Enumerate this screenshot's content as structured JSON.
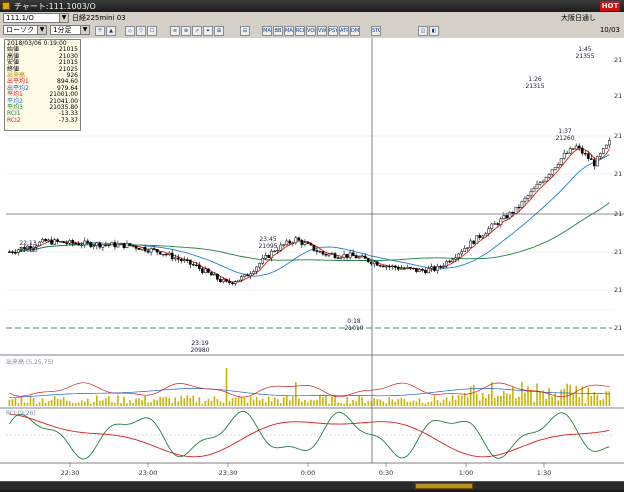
{
  "window": {
    "title": "チャート:111.1003/O",
    "hot_badge": "HOT"
  },
  "toolbar": {
    "symbol_code": "111.1/O",
    "symbol_name": "日経225mini 03",
    "chart_type": "ローソク",
    "interval": "1分足",
    "exchange_label": "大阪日通し",
    "date_label": "10/03",
    "buttons": [
      "〒",
      "▲",
      "◇",
      "▽",
      "☐",
      "≡",
      "⊕",
      "↗",
      "✦",
      "⊞",
      "⊟",
      "MA",
      "BB",
      "MACD",
      "RCI",
      "VOL",
      "VWAP",
      "PSY",
      "ATR",
      "DMI",
      "STC",
      "◫",
      "◧"
    ]
  },
  "info_panel": {
    "datetime": "2018/03/06 0:19:00",
    "rows": [
      {
        "label": "始値",
        "value": "21015",
        "color": "#000000"
      },
      {
        "label": "高値",
        "value": "21030",
        "color": "#000000"
      },
      {
        "label": "安値",
        "value": "21015",
        "color": "#000000"
      },
      {
        "label": "終値",
        "value": "21025",
        "color": "#000000"
      },
      {
        "label": "出来高",
        "value": "926",
        "color": "#b8860b"
      },
      {
        "label": "出平均1",
        "value": "894.60",
        "color": "#d42020"
      },
      {
        "label": "出平均2",
        "value": "979.64",
        "color": "#2060d0"
      },
      {
        "label": "平均1",
        "value": "21001.00",
        "color": "#d42020"
      },
      {
        "label": "平均2",
        "value": "21041.00",
        "color": "#2080d0"
      },
      {
        "label": "平均3",
        "value": "21035.80",
        "color": "#208040"
      },
      {
        "label": "RCI1",
        "value": "-13.33",
        "color": "#208040"
      },
      {
        "label": "RCI2",
        "value": "-73.37",
        "color": "#d42020"
      }
    ]
  },
  "annotations": [
    {
      "time": "22:13",
      "price": "21090"
    },
    {
      "time": "23:19",
      "price": "20980"
    },
    {
      "time": "23:45",
      "price": "21095"
    },
    {
      "time": "0:18",
      "price": "21010"
    },
    {
      "time": "1:26",
      "price": "21315"
    },
    {
      "time": "1:37",
      "price": "21260"
    },
    {
      "time": "1:45",
      "price": "21355"
    }
  ],
  "time_axis": [
    "22:30",
    "23:00",
    "23:30",
    "0:00",
    "0:30",
    "1:00",
    "1:30"
  ],
  "price_axis_labels": [
    "21",
    "21",
    "21",
    "21",
    "21",
    "21",
    "21",
    "21"
  ],
  "volume_panel": {
    "label": "出来高 (5,25,75)"
  },
  "rci_panel": {
    "label": "RCI (9,26)"
  },
  "colors": {
    "up_candle": "#ffffff",
    "down_candle": "#000000",
    "ma_short": "#d42020",
    "ma_mid": "#2080d0",
    "ma_long": "#208040",
    "volume": "#c8b400"
  }
}
